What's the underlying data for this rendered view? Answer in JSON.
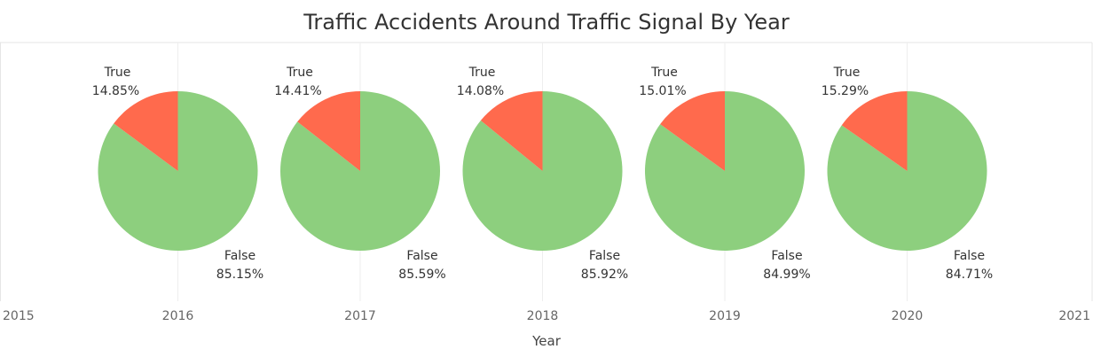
{
  "chart_data": {
    "type": "pie",
    "title": "Traffic Accidents Around Traffic Signal By Year",
    "xlabel": "Year",
    "x_ticks": [
      "2015",
      "2016",
      "2017",
      "2018",
      "2019",
      "2020",
      "2021"
    ],
    "categories": [
      "True",
      "False"
    ],
    "colors": {
      "True": "#ff6a4d",
      "False": "#8dcf7e"
    },
    "pies": [
      {
        "year": "2016",
        "true_pct": 14.85,
        "false_pct": 85.15,
        "true_text": "14.85%",
        "false_text": "85.15%"
      },
      {
        "year": "2017",
        "true_pct": 14.41,
        "false_pct": 85.59,
        "true_text": "14.41%",
        "false_text": "85.59%"
      },
      {
        "year": "2018",
        "true_pct": 14.08,
        "false_pct": 85.92,
        "true_text": "14.08%",
        "false_text": "85.92%"
      },
      {
        "year": "2019",
        "true_pct": 15.01,
        "false_pct": 84.99,
        "true_text": "15.01%",
        "false_text": "84.99%"
      },
      {
        "year": "2020",
        "true_pct": 15.29,
        "false_pct": 84.71,
        "true_text": "15.29%",
        "false_text": "84.71%"
      }
    ],
    "grid": true
  }
}
